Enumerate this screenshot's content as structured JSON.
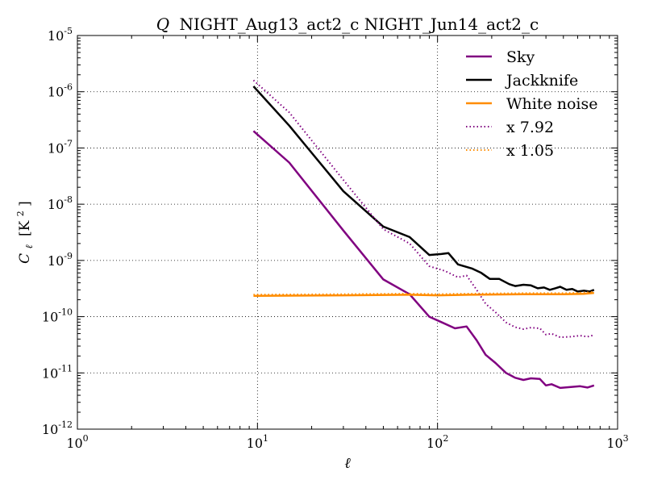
{
  "chart_data": {
    "type": "line",
    "title": "Q NIGHT_Aug13_act2_c NIGHT_Jun14_act2_c",
    "title_parts": {
      "symbol": "Q",
      "text": "NIGHT_Aug13_act2_c NIGHT_Jun14_act2_c"
    },
    "xlabel": "ℓ",
    "ylabel": "C",
    "ylabel_parts": {
      "symbol": "C",
      "subscript": "ℓ",
      "units": "[K",
      "units_sup": "2",
      "units_end": "]"
    },
    "xscale": "log",
    "yscale": "log",
    "xlim": [
      1,
      1000
    ],
    "ylim": [
      1e-12,
      1e-05
    ],
    "x_ticks": [
      {
        "value": 1,
        "label": {
          "base": "10",
          "exp": "0"
        }
      },
      {
        "value": 10,
        "label": {
          "base": "10",
          "exp": "1"
        }
      },
      {
        "value": 100,
        "label": {
          "base": "10",
          "exp": "2"
        }
      },
      {
        "value": 1000,
        "label": {
          "base": "10",
          "exp": "3"
        }
      }
    ],
    "y_ticks": [
      {
        "value": 1e-12,
        "label": {
          "base": "10",
          "exp": "-12"
        }
      },
      {
        "value": 1e-11,
        "label": {
          "base": "10",
          "exp": "-11"
        }
      },
      {
        "value": 1e-10,
        "label": {
          "base": "10",
          "exp": "-10"
        }
      },
      {
        "value": 1e-09,
        "label": {
          "base": "10",
          "exp": "-9"
        }
      },
      {
        "value": 1e-08,
        "label": {
          "base": "10",
          "exp": "-8"
        }
      },
      {
        "value": 1e-07,
        "label": {
          "base": "10",
          "exp": "-7"
        }
      },
      {
        "value": 1e-06,
        "label": {
          "base": "10",
          "exp": "-6"
        }
      },
      {
        "value": 1e-05,
        "label": {
          "base": "10",
          "exp": "-5"
        }
      }
    ],
    "grid": true,
    "legend_position": "top-right",
    "series": [
      {
        "name": "Sky",
        "color": "#800080",
        "style": "solid",
        "points": [
          [
            9.5,
            2e-07
          ],
          [
            15,
            5.5e-08
          ],
          [
            30,
            3.4e-09
          ],
          [
            50,
            4.6e-10
          ],
          [
            70,
            2.5e-10
          ],
          [
            90,
            1e-10
          ],
          [
            105,
            8e-11
          ],
          [
            125,
            6.2e-11
          ],
          [
            145,
            6.7e-11
          ],
          [
            165,
            3.8e-11
          ],
          [
            185,
            2.1e-11
          ],
          [
            210,
            1.5e-11
          ],
          [
            240,
            1e-11
          ],
          [
            270,
            8.2e-12
          ],
          [
            300,
            7.5e-12
          ],
          [
            330,
            8e-12
          ],
          [
            370,
            7.8e-12
          ],
          [
            400,
            6e-12
          ],
          [
            430,
            6.3e-12
          ],
          [
            480,
            5.4e-12
          ],
          [
            550,
            5.6e-12
          ],
          [
            620,
            5.8e-12
          ],
          [
            680,
            5.5e-12
          ],
          [
            740,
            6e-12
          ]
        ]
      },
      {
        "name": "Jackknife",
        "color": "#000000",
        "style": "solid",
        "points": [
          [
            9.5,
            1.25e-06
          ],
          [
            15,
            2.5e-07
          ],
          [
            30,
            1.7e-08
          ],
          [
            50,
            4e-09
          ],
          [
            70,
            2.6e-09
          ],
          [
            90,
            1.25e-09
          ],
          [
            105,
            1.3e-09
          ],
          [
            115,
            1.35e-09
          ],
          [
            130,
            8.5e-10
          ],
          [
            155,
            7.2e-10
          ],
          [
            175,
            6e-10
          ],
          [
            195,
            4.7e-10
          ],
          [
            220,
            4.7e-10
          ],
          [
            250,
            3.8e-10
          ],
          [
            270,
            3.5e-10
          ],
          [
            300,
            3.7e-10
          ],
          [
            330,
            3.6e-10
          ],
          [
            360,
            3.2e-10
          ],
          [
            390,
            3.3e-10
          ],
          [
            420,
            3e-10
          ],
          [
            450,
            3.2e-10
          ],
          [
            480,
            3.4e-10
          ],
          [
            520,
            3e-10
          ],
          [
            560,
            3.1e-10
          ],
          [
            600,
            2.8e-10
          ],
          [
            650,
            2.9e-10
          ],
          [
            700,
            2.8e-10
          ],
          [
            740,
            3e-10
          ]
        ]
      },
      {
        "name": "White noise",
        "color": "#ff8c00",
        "style": "solid",
        "points": [
          [
            9.5,
            2.35e-10
          ],
          [
            30,
            2.4e-10
          ],
          [
            70,
            2.45e-10
          ],
          [
            100,
            2.4e-10
          ],
          [
            150,
            2.45e-10
          ],
          [
            300,
            2.5e-10
          ],
          [
            500,
            2.5e-10
          ],
          [
            650,
            2.55e-10
          ],
          [
            740,
            2.65e-10
          ]
        ]
      },
      {
        "name": "x 7.92",
        "color": "#800080",
        "style": "dotted",
        "points": [
          [
            9.5,
            1.6e-06
          ],
          [
            15,
            4.3e-07
          ],
          [
            30,
            2.7e-08
          ],
          [
            50,
            3.6e-09
          ],
          [
            70,
            2e-09
          ],
          [
            90,
            7.9e-10
          ],
          [
            110,
            6.5e-10
          ],
          [
            130,
            5e-10
          ],
          [
            145,
            5.4e-10
          ],
          [
            165,
            3e-10
          ],
          [
            185,
            1.7e-10
          ],
          [
            210,
            1.2e-10
          ],
          [
            240,
            7.9e-11
          ],
          [
            270,
            6.5e-11
          ],
          [
            300,
            6e-11
          ],
          [
            330,
            6.4e-11
          ],
          [
            370,
            6.2e-11
          ],
          [
            400,
            4.8e-11
          ],
          [
            430,
            5e-11
          ],
          [
            480,
            4.3e-11
          ],
          [
            550,
            4.4e-11
          ],
          [
            620,
            4.6e-11
          ],
          [
            680,
            4.4e-11
          ],
          [
            740,
            4.7e-11
          ]
        ]
      },
      {
        "name": "x 1.05",
        "color": "#ff8c00",
        "style": "dotted",
        "points": [
          [
            9.5,
            2.47e-10
          ],
          [
            30,
            2.52e-10
          ],
          [
            70,
            2.57e-10
          ],
          [
            100,
            2.52e-10
          ],
          [
            150,
            2.57e-10
          ],
          [
            300,
            2.62e-10
          ],
          [
            500,
            2.62e-10
          ],
          [
            650,
            2.68e-10
          ],
          [
            740,
            2.78e-10
          ]
        ]
      }
    ]
  }
}
